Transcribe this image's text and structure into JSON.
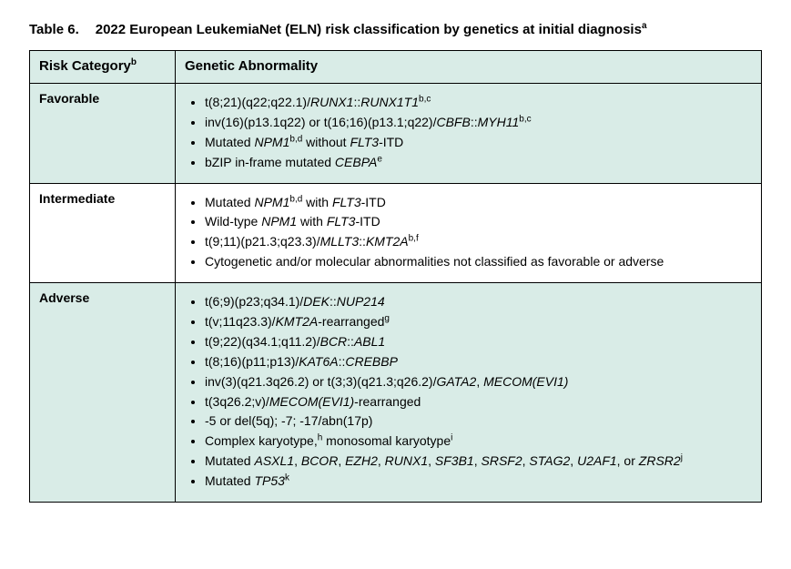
{
  "caption": {
    "number": "Table 6.",
    "title_html": "2022 European LeukemiaNet (ELN) risk classification by genetics at initial diagnosis<sup>a</sup>"
  },
  "headers": {
    "risk_html": "Risk Category<sup>b</sup>",
    "abn": "Genetic Abnormality"
  },
  "colors": {
    "shade": "#d9ece7",
    "border": "#000000",
    "text": "#000000",
    "background": "#ffffff"
  },
  "rows": [
    {
      "shaded": true,
      "category": "Favorable",
      "items_html": [
        "t(8;21)(q22;q22.1)/<i>RUNX1</i>::<i>RUNX1T1</i><sup>b,c</sup>",
        "inv(16)(p13.1q22) or t(16;16)(p13.1;q22)/<i>CBFB</i>::<i>MYH11</i><sup>b,c</sup>",
        "Mutated <i>NPM1</i><sup>b,d</sup> without <i>FLT3</i>-ITD",
        "bZIP in-frame mutated <i>CEBPA</i><sup>e</sup>"
      ]
    },
    {
      "shaded": false,
      "category": "Intermediate",
      "items_html": [
        "Mutated <i>NPM1</i><sup>b,d</sup> with <i>FLT3</i>-ITD",
        "Wild-type <i>NPM1</i> with <i>FLT3</i>-ITD",
        "t(9;11)(p21.3;q23.3)/<i>MLLT3</i>::<i>KMT2A</i><sup>b,f</sup>",
        "Cytogenetic and/or molecular abnormalities not classified as favorable or adverse"
      ]
    },
    {
      "shaded": true,
      "category": "Adverse",
      "items_html": [
        "t(6;9)(p23;q34.1)/<i>DEK</i>::<i>NUP214</i>",
        "t(v;11q23.3)/<i>KMT2A</i>-rearranged<sup>g</sup>",
        "t(9;22)(q34.1;q11.2)/<i>BCR</i>::<i>ABL1</i>",
        "t(8;16)(p11;p13)/<i>KAT6A</i>::<i>CREBBP</i>",
        "inv(3)(q21.3q26.2) or t(3;3)(q21.3;q26.2)/<i>GATA2</i>, <i>MECOM(EVI1)</i>",
        "t(3q26.2;v)/<i>MECOM(EVI1)</i>-rearranged",
        "-5 or del(5q); -7; -17/abn(17p)",
        "Complex karyotype,<sup>h</sup> monosomal karyotype<sup>i</sup>",
        "Mutated <i>ASXL1</i>, <i>BCOR</i>, <i>EZH2</i>, <i>RUNX1</i>, <i>SF3B1</i>, <i>SRSF2</i>, <i>STAG2</i>, <i>U2AF1</i>, or <i>ZRSR2</i><sup>j</sup>",
        "Mutated <i>TP53</i><sup>k</sup>"
      ]
    }
  ]
}
